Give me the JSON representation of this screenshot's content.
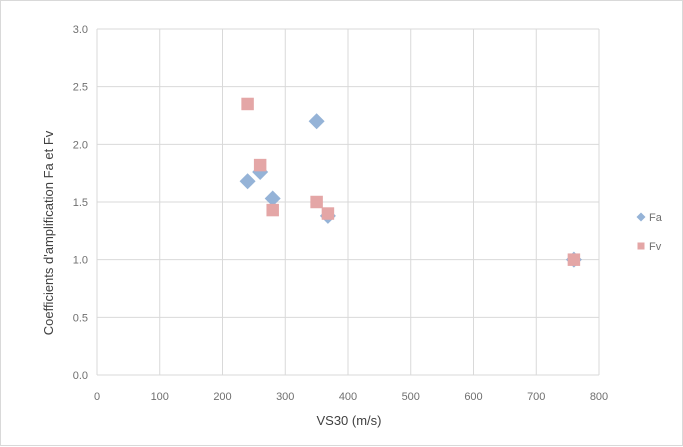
{
  "chart_data": {
    "type": "scatter",
    "xlabel": "VS30 (m/s)",
    "ylabel": "Coefficients d'amplification Fa et Fv",
    "xlim": [
      0,
      800
    ],
    "ylim": [
      0,
      3.0
    ],
    "x_ticks": [
      "0",
      "100",
      "200",
      "300",
      "400",
      "500",
      "600",
      "700",
      "800"
    ],
    "y_ticks": [
      "0.0",
      "0.5",
      "1.0",
      "1.5",
      "2.0",
      "2.5",
      "3.0"
    ],
    "grid": true,
    "legend_position": "right",
    "series": [
      {
        "name": "Fa",
        "marker": "diamond",
        "color": "#95b3d7",
        "points": [
          {
            "x": 240,
            "y": 1.68
          },
          {
            "x": 260,
            "y": 1.76
          },
          {
            "x": 280,
            "y": 1.53
          },
          {
            "x": 350,
            "y": 2.2
          },
          {
            "x": 368,
            "y": 1.38
          },
          {
            "x": 760,
            "y": 1.0
          }
        ]
      },
      {
        "name": "Fv",
        "marker": "square",
        "color": "#e4a6a6",
        "points": [
          {
            "x": 240,
            "y": 2.35
          },
          {
            "x": 260,
            "y": 1.82
          },
          {
            "x": 280,
            "y": 1.43
          },
          {
            "x": 350,
            "y": 1.5
          },
          {
            "x": 368,
            "y": 1.4
          },
          {
            "x": 760,
            "y": 1.0
          }
        ]
      }
    ]
  }
}
